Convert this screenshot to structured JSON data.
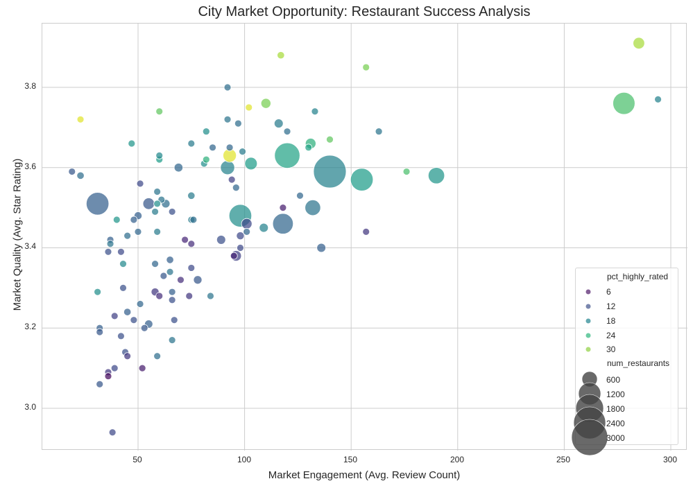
{
  "chart_data": {
    "type": "scatter",
    "title": "City Market Opportunity: Restaurant Success Analysis",
    "xlabel": "Market Engagement (Avg. Review Count)",
    "ylabel": "Market Quality (Avg. Star Rating)",
    "xlim": [
      5,
      308
    ],
    "ylim": [
      2.89,
      3.96
    ],
    "xticks": [
      50,
      100,
      150,
      200,
      250,
      300
    ],
    "yticks": [
      3.0,
      3.2,
      3.4,
      3.6,
      3.8
    ],
    "grid": true,
    "legend_position": "lower right",
    "hue": "pct_highly_rated",
    "size": "num_restaurants",
    "legend": {
      "hue_title": "pct_highly_rated",
      "hue_entries": [
        {
          "label": "6",
          "color": "#5b2a73"
        },
        {
          "label": "12",
          "color": "#4e5f93"
        },
        {
          "label": "18",
          "color": "#2f8b95"
        },
        {
          "label": "24",
          "color": "#3cbb86"
        },
        {
          "label": "30",
          "color": "#95d34c"
        }
      ],
      "size_title": "num_restaurants",
      "size_entries": [
        {
          "label": "600",
          "r": 11
        },
        {
          "label": "1200",
          "r": 16
        },
        {
          "label": "1800",
          "r": 20
        },
        {
          "label": "2400",
          "r": 23
        },
        {
          "label": "3000",
          "r": 26
        }
      ]
    },
    "points": [
      {
        "x": 285,
        "y": 3.91,
        "pct": 33,
        "n": 300
      },
      {
        "x": 278,
        "y": 3.76,
        "pct": 29,
        "n": 1100
      },
      {
        "x": 294,
        "y": 3.77,
        "pct": 20,
        "n": 60
      },
      {
        "x": 117,
        "y": 3.88,
        "pct": 33,
        "n": 120
      },
      {
        "x": 157,
        "y": 3.85,
        "pct": 31,
        "n": 60
      },
      {
        "x": 23,
        "y": 3.72,
        "pct": 35,
        "n": 70
      },
      {
        "x": 60,
        "y": 3.74,
        "pct": 30,
        "n": 80
      },
      {
        "x": 92,
        "y": 3.8,
        "pct": 17,
        "n": 80
      },
      {
        "x": 110,
        "y": 3.76,
        "pct": 31,
        "n": 220
      },
      {
        "x": 102,
        "y": 3.75,
        "pct": 35,
        "n": 90
      },
      {
        "x": 133,
        "y": 3.74,
        "pct": 20,
        "n": 70
      },
      {
        "x": 92,
        "y": 3.72,
        "pct": 18,
        "n": 80
      },
      {
        "x": 97,
        "y": 3.71,
        "pct": 17,
        "n": 110
      },
      {
        "x": 116,
        "y": 3.71,
        "pct": 19,
        "n": 180
      },
      {
        "x": 47,
        "y": 3.66,
        "pct": 23,
        "n": 110
      },
      {
        "x": 75,
        "y": 3.66,
        "pct": 19,
        "n": 100
      },
      {
        "x": 82,
        "y": 3.69,
        "pct": 22,
        "n": 110
      },
      {
        "x": 120,
        "y": 3.69,
        "pct": 17,
        "n": 70
      },
      {
        "x": 163,
        "y": 3.69,
        "pct": 18,
        "n": 110
      },
      {
        "x": 131,
        "y": 3.66,
        "pct": 27,
        "n": 250
      },
      {
        "x": 140,
        "y": 3.67,
        "pct": 30,
        "n": 110
      },
      {
        "x": 130,
        "y": 3.65,
        "pct": 25,
        "n": 70
      },
      {
        "x": 85,
        "y": 3.65,
        "pct": 16,
        "n": 70
      },
      {
        "x": 93,
        "y": 3.65,
        "pct": 16,
        "n": 80
      },
      {
        "x": 60,
        "y": 3.63,
        "pct": 21,
        "n": 70
      },
      {
        "x": 60,
        "y": 3.62,
        "pct": 24,
        "n": 80
      },
      {
        "x": 82,
        "y": 3.62,
        "pct": 27,
        "n": 60
      },
      {
        "x": 81,
        "y": 3.61,
        "pct": 22,
        "n": 70
      },
      {
        "x": 99,
        "y": 3.64,
        "pct": 19,
        "n": 60
      },
      {
        "x": 93,
        "y": 3.63,
        "pct": 35,
        "n": 400
      },
      {
        "x": 92,
        "y": 3.6,
        "pct": 20,
        "n": 450
      },
      {
        "x": 103,
        "y": 3.61,
        "pct": 24,
        "n": 350
      },
      {
        "x": 120,
        "y": 3.63,
        "pct": 25,
        "n": 1450
      },
      {
        "x": 140,
        "y": 3.59,
        "pct": 20,
        "n": 2400
      },
      {
        "x": 155,
        "y": 3.57,
        "pct": 24,
        "n": 1150
      },
      {
        "x": 190,
        "y": 3.58,
        "pct": 23,
        "n": 600
      },
      {
        "x": 176,
        "y": 3.59,
        "pct": 29,
        "n": 70
      },
      {
        "x": 19,
        "y": 3.59,
        "pct": 14,
        "n": 80
      },
      {
        "x": 23,
        "y": 3.58,
        "pct": 17,
        "n": 120
      },
      {
        "x": 69,
        "y": 3.6,
        "pct": 16,
        "n": 170
      },
      {
        "x": 31,
        "y": 3.51,
        "pct": 15,
        "n": 1150
      },
      {
        "x": 51,
        "y": 3.56,
        "pct": 12,
        "n": 60
      },
      {
        "x": 94,
        "y": 3.57,
        "pct": 11,
        "n": 70
      },
      {
        "x": 96,
        "y": 3.55,
        "pct": 16,
        "n": 110
      },
      {
        "x": 59,
        "y": 3.54,
        "pct": 18,
        "n": 90
      },
      {
        "x": 75,
        "y": 3.53,
        "pct": 19,
        "n": 120
      },
      {
        "x": 126,
        "y": 3.53,
        "pct": 16,
        "n": 60
      },
      {
        "x": 55,
        "y": 3.51,
        "pct": 14,
        "n": 300
      },
      {
        "x": 61,
        "y": 3.52,
        "pct": 18,
        "n": 70
      },
      {
        "x": 63,
        "y": 3.51,
        "pct": 17,
        "n": 160
      },
      {
        "x": 59,
        "y": 3.51,
        "pct": 22,
        "n": 70
      },
      {
        "x": 50,
        "y": 3.48,
        "pct": 15,
        "n": 140
      },
      {
        "x": 58,
        "y": 3.49,
        "pct": 19,
        "n": 90
      },
      {
        "x": 66,
        "y": 3.49,
        "pct": 13,
        "n": 70
      },
      {
        "x": 40,
        "y": 3.47,
        "pct": 23,
        "n": 90
      },
      {
        "x": 48,
        "y": 3.47,
        "pct": 15,
        "n": 70
      },
      {
        "x": 75,
        "y": 3.47,
        "pct": 19,
        "n": 80
      },
      {
        "x": 76,
        "y": 3.47,
        "pct": 17,
        "n": 60
      },
      {
        "x": 98,
        "y": 3.48,
        "pct": 22,
        "n": 1150
      },
      {
        "x": 101,
        "y": 3.46,
        "pct": 12,
        "n": 250
      },
      {
        "x": 118,
        "y": 3.5,
        "pct": 7,
        "n": 60
      },
      {
        "x": 118,
        "y": 3.46,
        "pct": 16,
        "n": 950
      },
      {
        "x": 132,
        "y": 3.5,
        "pct": 18,
        "n": 550
      },
      {
        "x": 109,
        "y": 3.45,
        "pct": 20,
        "n": 180
      },
      {
        "x": 101,
        "y": 3.44,
        "pct": 16,
        "n": 110
      },
      {
        "x": 157,
        "y": 3.44,
        "pct": 10,
        "n": 70
      },
      {
        "x": 45,
        "y": 3.43,
        "pct": 17,
        "n": 70
      },
      {
        "x": 50,
        "y": 3.44,
        "pct": 16,
        "n": 70
      },
      {
        "x": 59,
        "y": 3.44,
        "pct": 19,
        "n": 80
      },
      {
        "x": 37,
        "y": 3.42,
        "pct": 15,
        "n": 100
      },
      {
        "x": 37,
        "y": 3.41,
        "pct": 18,
        "n": 70
      },
      {
        "x": 36,
        "y": 3.39,
        "pct": 13,
        "n": 80
      },
      {
        "x": 42,
        "y": 3.39,
        "pct": 12,
        "n": 70
      },
      {
        "x": 72,
        "y": 3.42,
        "pct": 8,
        "n": 60
      },
      {
        "x": 75,
        "y": 3.41,
        "pct": 9,
        "n": 80
      },
      {
        "x": 89,
        "y": 3.42,
        "pct": 13,
        "n": 180
      },
      {
        "x": 98,
        "y": 3.43,
        "pct": 12,
        "n": 140
      },
      {
        "x": 98,
        "y": 3.4,
        "pct": 12,
        "n": 70
      },
      {
        "x": 96,
        "y": 3.38,
        "pct": 11,
        "n": 250
      },
      {
        "x": 95,
        "y": 3.38,
        "pct": 8,
        "n": 90
      },
      {
        "x": 136,
        "y": 3.4,
        "pct": 15,
        "n": 180
      },
      {
        "x": 65,
        "y": 3.37,
        "pct": 15,
        "n": 120
      },
      {
        "x": 43,
        "y": 3.36,
        "pct": 21,
        "n": 70
      },
      {
        "x": 58,
        "y": 3.36,
        "pct": 16,
        "n": 80
      },
      {
        "x": 75,
        "y": 3.35,
        "pct": 12,
        "n": 90
      },
      {
        "x": 62,
        "y": 3.33,
        "pct": 14,
        "n": 70
      },
      {
        "x": 65,
        "y": 3.34,
        "pct": 18,
        "n": 70
      },
      {
        "x": 70,
        "y": 3.32,
        "pct": 9,
        "n": 80
      },
      {
        "x": 78,
        "y": 3.32,
        "pct": 14,
        "n": 160
      },
      {
        "x": 43,
        "y": 3.3,
        "pct": 13,
        "n": 90
      },
      {
        "x": 31,
        "y": 3.29,
        "pct": 22,
        "n": 100
      },
      {
        "x": 58,
        "y": 3.29,
        "pct": 10,
        "n": 140
      },
      {
        "x": 60,
        "y": 3.28,
        "pct": 9,
        "n": 110
      },
      {
        "x": 66,
        "y": 3.29,
        "pct": 15,
        "n": 100
      },
      {
        "x": 66,
        "y": 3.27,
        "pct": 13,
        "n": 70
      },
      {
        "x": 74,
        "y": 3.28,
        "pct": 10,
        "n": 100
      },
      {
        "x": 84,
        "y": 3.28,
        "pct": 18,
        "n": 70
      },
      {
        "x": 51,
        "y": 3.26,
        "pct": 16,
        "n": 90
      },
      {
        "x": 45,
        "y": 3.24,
        "pct": 15,
        "n": 120
      },
      {
        "x": 39,
        "y": 3.23,
        "pct": 11,
        "n": 70
      },
      {
        "x": 48,
        "y": 3.22,
        "pct": 13,
        "n": 70
      },
      {
        "x": 67,
        "y": 3.22,
        "pct": 13,
        "n": 60
      },
      {
        "x": 55,
        "y": 3.21,
        "pct": 15,
        "n": 150
      },
      {
        "x": 53,
        "y": 3.2,
        "pct": 14,
        "n": 110
      },
      {
        "x": 32,
        "y": 3.2,
        "pct": 15,
        "n": 60
      },
      {
        "x": 32,
        "y": 3.19,
        "pct": 14,
        "n": 60
      },
      {
        "x": 66,
        "y": 3.17,
        "pct": 18,
        "n": 90
      },
      {
        "x": 42,
        "y": 3.18,
        "pct": 13,
        "n": 70
      },
      {
        "x": 44,
        "y": 3.14,
        "pct": 13,
        "n": 100
      },
      {
        "x": 45,
        "y": 3.13,
        "pct": 10,
        "n": 70
      },
      {
        "x": 59,
        "y": 3.13,
        "pct": 17,
        "n": 80
      },
      {
        "x": 39,
        "y": 3.1,
        "pct": 12,
        "n": 80
      },
      {
        "x": 52,
        "y": 3.1,
        "pct": 7,
        "n": 110
      },
      {
        "x": 36,
        "y": 3.09,
        "pct": 10,
        "n": 70
      },
      {
        "x": 36,
        "y": 3.08,
        "pct": 5,
        "n": 70
      },
      {
        "x": 32,
        "y": 3.06,
        "pct": 14,
        "n": 110
      },
      {
        "x": 38,
        "y": 2.94,
        "pct": 12,
        "n": 80
      }
    ]
  },
  "axes": {
    "x_ticks": [
      "50",
      "100",
      "150",
      "200",
      "250",
      "300"
    ],
    "y_ticks": [
      "3.8",
      "3.6",
      "3.4",
      "3.2",
      "3.0"
    ]
  }
}
